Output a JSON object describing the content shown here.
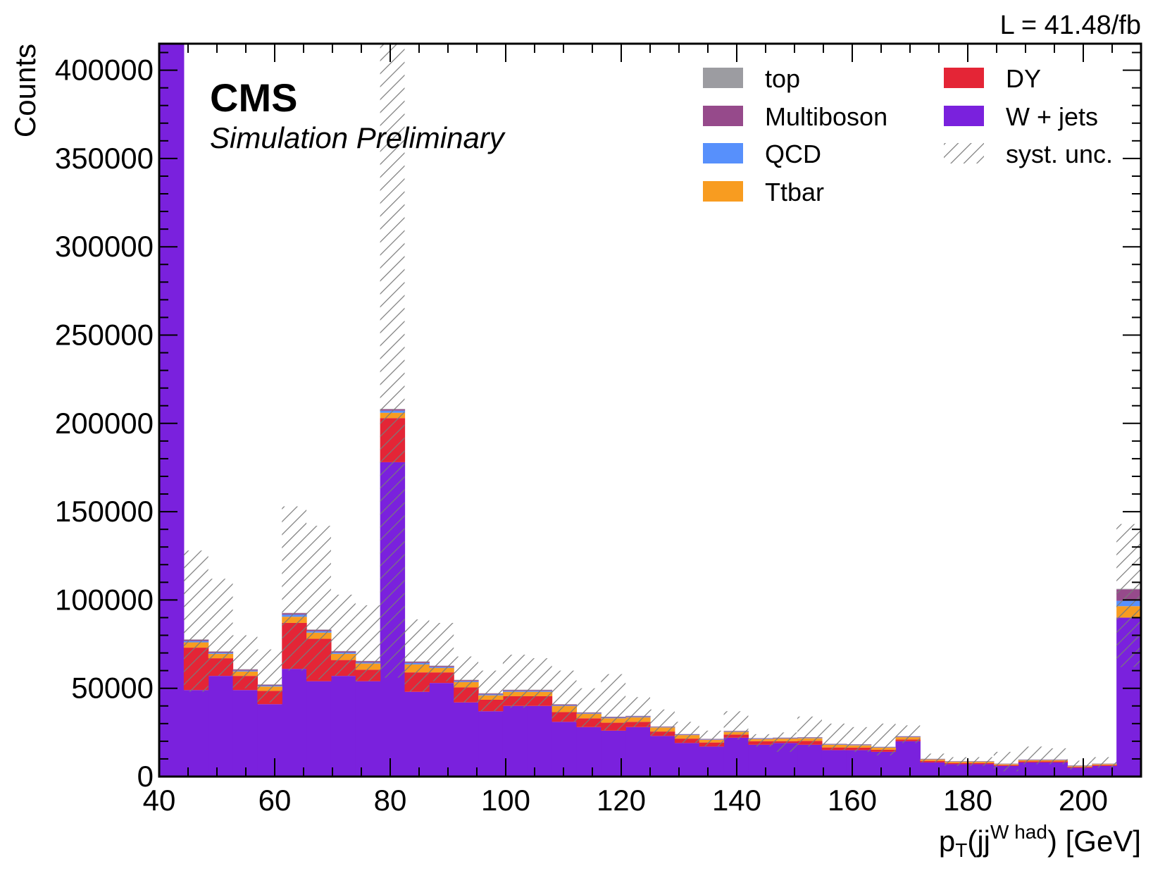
{
  "chart_data": {
    "type": "bar",
    "stacked": true,
    "experiment": "CMS",
    "subtitle": "Simulation Preliminary",
    "luminosity": "L = 41.48/fb",
    "ylabel": "Counts",
    "xlabel": {
      "main": "p",
      "sub": "T",
      "mid": "(jj",
      "sup": "W had",
      "tail": ") [GeV]"
    },
    "xlim": [
      40,
      210
    ],
    "ylim": [
      0,
      415000
    ],
    "x_ticks": [
      40,
      60,
      80,
      100,
      120,
      140,
      160,
      180,
      200
    ],
    "x_tick_labels": [
      "40",
      "60",
      "80",
      "100",
      "120",
      "140",
      "160",
      "180",
      "200"
    ],
    "y_ticks": [
      0,
      50000,
      100000,
      150000,
      200000,
      250000,
      300000,
      350000,
      400000
    ],
    "y_tick_labels": [
      "0",
      "50000",
      "100000",
      "150000",
      "200000",
      "250000",
      "300000",
      "350000",
      "400000"
    ],
    "grid": false,
    "legend_position": "top-right",
    "bin_edges": [
      40,
      44.25,
      48.5,
      52.75,
      57,
      61.25,
      65.5,
      69.75,
      74,
      78.25,
      82.5,
      86.75,
      91,
      95.25,
      99.5,
      103.75,
      108,
      112.25,
      116.5,
      120.75,
      125,
      129.25,
      133.5,
      137.75,
      142,
      146.25,
      150.5,
      154.75,
      159,
      163.25,
      167.5,
      171.75,
      176,
      180.25,
      184.5,
      188.75,
      193,
      197.25,
      201.5,
      205.75,
      210
    ],
    "series": [
      {
        "name": "W + jets",
        "color": "#7a21dd",
        "values": [
          420000,
          49000,
          57000,
          49000,
          41000,
          61000,
          54000,
          57000,
          54000,
          178000,
          48000,
          53000,
          42000,
          37000,
          40000,
          40000,
          31000,
          28000,
          26000,
          28000,
          23000,
          19000,
          17000,
          22000,
          18000,
          19000,
          18000,
          15000,
          15000,
          14000,
          20000,
          8000,
          7000,
          7000,
          6000,
          8000,
          8000,
          5000,
          6000,
          90000
        ]
      },
      {
        "name": "DY",
        "color": "#e42536",
        "values": [
          0,
          24000,
          10000,
          8000,
          7500,
          26000,
          24000,
          9000,
          6500,
          25000,
          11000,
          6000,
          8500,
          6500,
          5500,
          5500,
          5500,
          5000,
          4500,
          3000,
          2500,
          2500,
          2300,
          1800,
          2000,
          1000,
          2200,
          1500,
          1400,
          1200,
          1000,
          900,
          700,
          700,
          500,
          600,
          600,
          400,
          500,
          0
        ]
      },
      {
        "name": "Ttbar",
        "color": "#f89c20",
        "values": [
          0,
          3000,
          2500,
          2500,
          2500,
          3500,
          3500,
          3500,
          3500,
          3000,
          4500,
          2500,
          3000,
          2500,
          2500,
          2500,
          3500,
          2500,
          2500,
          2500,
          2300,
          2000,
          1500,
          1500,
          1200,
          1500,
          1500,
          1500,
          1300,
          1200,
          1300,
          800,
          700,
          700,
          500,
          700,
          700,
          500,
          500,
          6500
        ]
      },
      {
        "name": "QCD",
        "color": "#5790fc",
        "values": [
          0,
          800,
          600,
          500,
          500,
          1200,
          800,
          700,
          600,
          1200,
          800,
          500,
          500,
          500,
          500,
          500,
          300,
          300,
          300,
          300,
          200,
          200,
          200,
          200,
          200,
          200,
          200,
          200,
          200,
          200,
          200,
          100,
          100,
          100,
          100,
          100,
          100,
          100,
          100,
          3000
        ]
      },
      {
        "name": "Multiboson",
        "color": "#964a8b",
        "values": [
          0,
          700,
          600,
          600,
          500,
          800,
          800,
          700,
          700,
          800,
          700,
          600,
          600,
          500,
          500,
          500,
          500,
          400,
          400,
          400,
          300,
          300,
          300,
          300,
          300,
          300,
          300,
          300,
          300,
          200,
          300,
          200,
          200,
          200,
          200,
          200,
          200,
          200,
          200,
          6500
        ]
      },
      {
        "name": "top",
        "color": "#9c9ca1",
        "values": [
          0,
          200,
          200,
          200,
          200,
          200,
          200,
          200,
          200,
          200,
          200,
          200,
          200,
          200,
          200,
          200,
          200,
          200,
          200,
          200,
          100,
          100,
          100,
          100,
          100,
          100,
          100,
          100,
          100,
          100,
          100,
          100,
          100,
          100,
          100,
          100,
          100,
          100,
          100,
          300
        ]
      }
    ],
    "syst_unc": {
      "name": "syst. unc.",
      "color": "#8c8c8c",
      "low": [
        420000,
        48000,
        57000,
        50000,
        42000,
        60000,
        55000,
        57000,
        54000,
        56000,
        48000,
        54000,
        42000,
        37000,
        39000,
        40000,
        31000,
        28000,
        26000,
        28000,
        23000,
        19000,
        17000,
        21000,
        17000,
        14000,
        17000,
        15000,
        14000,
        12000,
        19000,
        8000,
        6000,
        6000,
        3000,
        7000,
        7000,
        4000,
        5000,
        62000
      ],
      "high": [
        420000,
        128000,
        112000,
        80000,
        72000,
        153000,
        142000,
        103000,
        97000,
        420000,
        89000,
        87000,
        68000,
        60000,
        69000,
        67000,
        60000,
        50000,
        58000,
        45000,
        38000,
        31000,
        26000,
        37000,
        24000,
        25000,
        34000,
        30000,
        28000,
        30000,
        29000,
        13000,
        11000,
        11000,
        14000,
        17000,
        16000,
        9000,
        11000,
        143000
      ]
    }
  },
  "legend": {
    "items": [
      {
        "label": "top",
        "color": "#9c9ca1",
        "hatched": false
      },
      {
        "label": "DY",
        "color": "#e42536",
        "hatched": false
      },
      {
        "label": "Multiboson",
        "color": "#964a8b",
        "hatched": false
      },
      {
        "label": "W + jets",
        "color": "#7a21dd",
        "hatched": false
      },
      {
        "label": "QCD",
        "color": "#5790fc",
        "hatched": false
      },
      {
        "label": "syst. unc.",
        "color": "#8c8c8c",
        "hatched": true
      },
      {
        "label": "Ttbar",
        "color": "#f89c20",
        "hatched": false
      }
    ]
  }
}
